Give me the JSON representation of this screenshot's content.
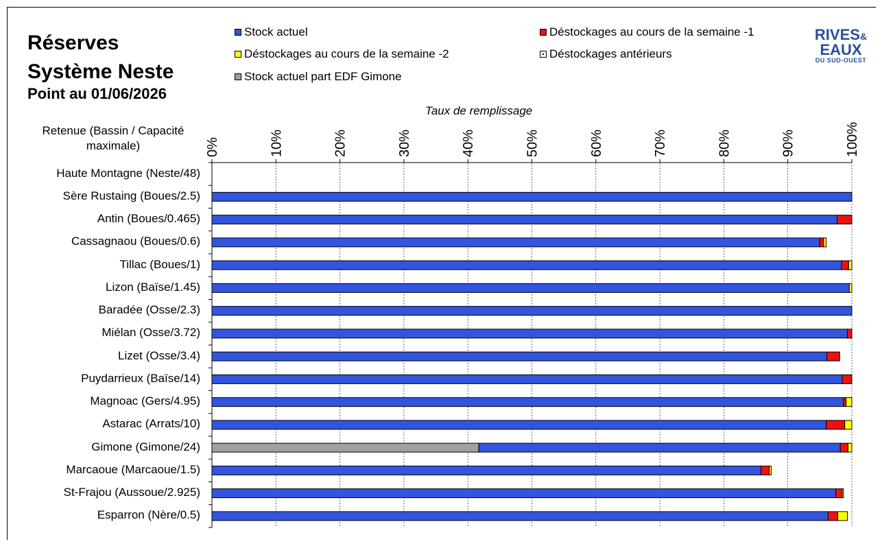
{
  "header": {
    "title_line1": "Réserves",
    "title_line2": "Système Neste",
    "title_line3": "Point au 01/06/2026"
  },
  "logo": {
    "line1": "RIVES",
    "ampersand": "&",
    "line2": "EAUX",
    "line3": "DU SUD-OUEST"
  },
  "colors": {
    "stock": "#3355dd",
    "week1": "#ee1111",
    "week2": "#ffff00",
    "gimone_edf": "#a0a0a0",
    "anterior": "#ffffff"
  },
  "legend": [
    {
      "label": "Stock actuel",
      "color": "#3355dd"
    },
    {
      "label": "Déstockages au cours de la semaine -1",
      "color": "#ee1111"
    },
    {
      "label": "Déstockages au cours de la semaine -2",
      "color": "#ffff00"
    },
    {
      "label": "Déstockages antérieurs",
      "color": "#ffffff"
    },
    {
      "label": "Stock actuel part EDF Gimone",
      "color": "#a0a0a0"
    }
  ],
  "chart_data": {
    "type": "bar",
    "orientation": "horizontal",
    "stacked": true,
    "xlabel": "Taux de remplissage",
    "category_header": "Retenue (Bassin / Capacité maximale)",
    "xlim": [
      0,
      100
    ],
    "x_ticks": [
      "0%",
      "10%",
      "20%",
      "30%",
      "40%",
      "50%",
      "60%",
      "70%",
      "80%",
      "90%",
      "100%"
    ],
    "grid": "vertical dashed",
    "legend_position": "top",
    "categories": [
      "Haute Montagne (Neste/48)",
      "Sère Rustaing (Boues/2.5)",
      "Antin (Boues/0.465)",
      "Cassagnaou (Boues/0.6)",
      "Tillac (Boues/1)",
      "Lizon (Baïse/1.45)",
      "Baradée (Osse/2.3)",
      "Miélan (Osse/3.72)",
      "Lizet (Osse/3.4)",
      "Puydarrieux (Baïse/14)",
      "Magnoac (Gers/4.95)",
      "Astarac (Arrats/10)",
      "Gimone (Gimone/24)",
      "Marcaoue (Marcaoue/1.5)",
      "St-Frajou (Aussoue/2.925)",
      "Esparron (Nère/0.5)"
    ],
    "series": [
      {
        "name": "Stock actuel part EDF Gimone",
        "values": [
          0,
          0,
          0,
          0,
          0,
          0,
          0,
          0,
          0,
          0,
          0,
          0,
          41.7,
          0,
          0,
          0
        ]
      },
      {
        "name": "Stock actuel",
        "values": [
          0,
          100,
          97.7,
          95.0,
          98.4,
          99.6,
          100,
          99.3,
          96.1,
          98.5,
          98.7,
          96.0,
          56.5,
          85.8,
          97.5,
          96.3
        ]
      },
      {
        "name": "Déstockages au cours de la semaine -1",
        "values": [
          0,
          0,
          2.3,
          0.6,
          1.1,
          0,
          0,
          0.7,
          2.0,
          1.5,
          0.4,
          2.9,
          1.2,
          1.3,
          1.0,
          1.5
        ]
      },
      {
        "name": "Déstockages au cours de la semaine -2",
        "values": [
          0,
          0,
          0,
          0.4,
          0.5,
          0.4,
          0,
          0,
          0,
          0,
          0.9,
          1.1,
          0.6,
          0.3,
          0.2,
          1.5
        ]
      },
      {
        "name": "Déstockages antérieurs",
        "values": [
          0,
          0,
          0,
          0,
          0,
          0,
          0,
          0,
          0,
          0,
          0,
          0,
          0,
          0,
          0,
          0
        ]
      }
    ]
  }
}
